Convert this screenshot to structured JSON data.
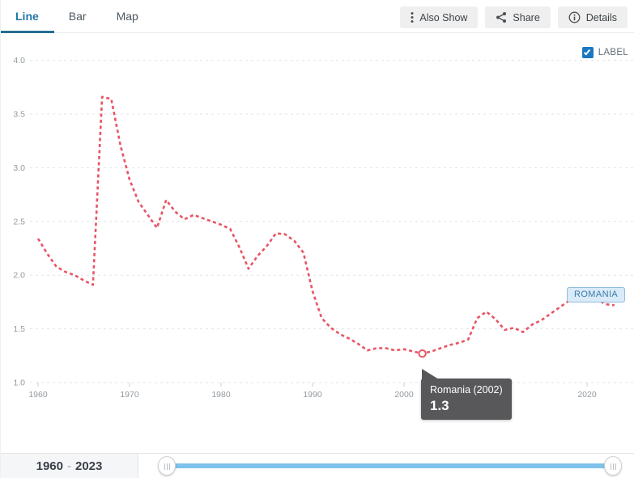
{
  "header": {
    "tabs": [
      {
        "label": "Line",
        "active": true
      },
      {
        "label": "Bar",
        "active": false
      },
      {
        "label": "Map",
        "active": false
      }
    ],
    "buttons": {
      "also_show": {
        "label": "Also Show",
        "icon": "kebab-vertical-icon"
      },
      "share": {
        "label": "Share",
        "icon": "share-icon"
      },
      "details": {
        "label": "Details",
        "icon": "info-icon"
      }
    }
  },
  "plot": {
    "label_toggle": {
      "label": "LABEL",
      "checked": true
    },
    "series_end_label": "ROMANIA",
    "tooltip": {
      "title": "Romania (2002)",
      "value": "1.3"
    }
  },
  "footer": {
    "range_start": "1960",
    "range_separator": "-",
    "range_end": "2023"
  },
  "colors": {
    "line": "#e75565",
    "active_tab": "#1f79a8",
    "tab_underline": "#276d92",
    "checkbox_blue": "#1a78c2",
    "tooltip_bg": "#58585b",
    "slider_track": "#7fc2ea",
    "gridline": "#e1e3e5",
    "axis_label": "#949a9f"
  },
  "chart_data": {
    "type": "line",
    "title": "",
    "xlabel": "",
    "ylabel": "",
    "xlim": [
      1960,
      2023
    ],
    "ylim": [
      1.0,
      4.0
    ],
    "grid": "horizontal-dashed",
    "line_style": "dashed",
    "line_color": "#e75565",
    "legend_position": "end-of-line",
    "x_ticks": [
      1960,
      1970,
      1980,
      1990,
      2000,
      2010,
      2020
    ],
    "y_ticks": [
      1.0,
      1.5,
      2.0,
      2.5,
      3.0,
      3.5,
      4.0
    ],
    "series": [
      {
        "name": "Romania",
        "x": [
          1960,
          1961,
          1962,
          1963,
          1964,
          1965,
          1966,
          1967,
          1968,
          1969,
          1970,
          1971,
          1972,
          1973,
          1974,
          1975,
          1976,
          1977,
          1978,
          1979,
          1980,
          1981,
          1982,
          1983,
          1984,
          1985,
          1986,
          1987,
          1988,
          1989,
          1990,
          1991,
          1992,
          1993,
          1994,
          1995,
          1996,
          1997,
          1998,
          1999,
          2000,
          2001,
          2002,
          2003,
          2004,
          2005,
          2006,
          2007,
          2008,
          2009,
          2010,
          2011,
          2012,
          2013,
          2014,
          2015,
          2016,
          2017,
          2018,
          2019,
          2020,
          2021,
          2022,
          2023
        ],
        "values": [
          2.34,
          2.2,
          2.08,
          2.03,
          2.0,
          1.95,
          1.91,
          3.66,
          3.64,
          3.21,
          2.89,
          2.68,
          2.56,
          2.44,
          2.7,
          2.59,
          2.52,
          2.56,
          2.53,
          2.5,
          2.47,
          2.43,
          2.26,
          2.06,
          2.18,
          2.27,
          2.39,
          2.38,
          2.32,
          2.21,
          1.85,
          1.6,
          1.51,
          1.45,
          1.41,
          1.36,
          1.3,
          1.32,
          1.32,
          1.3,
          1.31,
          1.29,
          1.27,
          1.29,
          1.32,
          1.35,
          1.37,
          1.4,
          1.6,
          1.66,
          1.59,
          1.49,
          1.51,
          1.47,
          1.54,
          1.58,
          1.64,
          1.7,
          1.76,
          1.79,
          1.8,
          1.78,
          1.73,
          1.72
        ]
      }
    ],
    "highlight_point": {
      "x": 2002,
      "y": 1.27,
      "label": "Romania (2002)",
      "display_value": "1.3"
    }
  }
}
